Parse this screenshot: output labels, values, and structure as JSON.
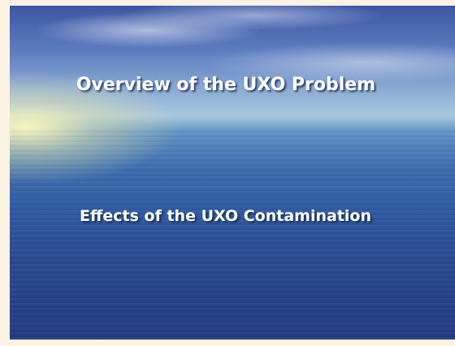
{
  "slide": {
    "title": "Overview of the UXO Problem",
    "subtitle": "Effects of the UXO Contamination"
  }
}
